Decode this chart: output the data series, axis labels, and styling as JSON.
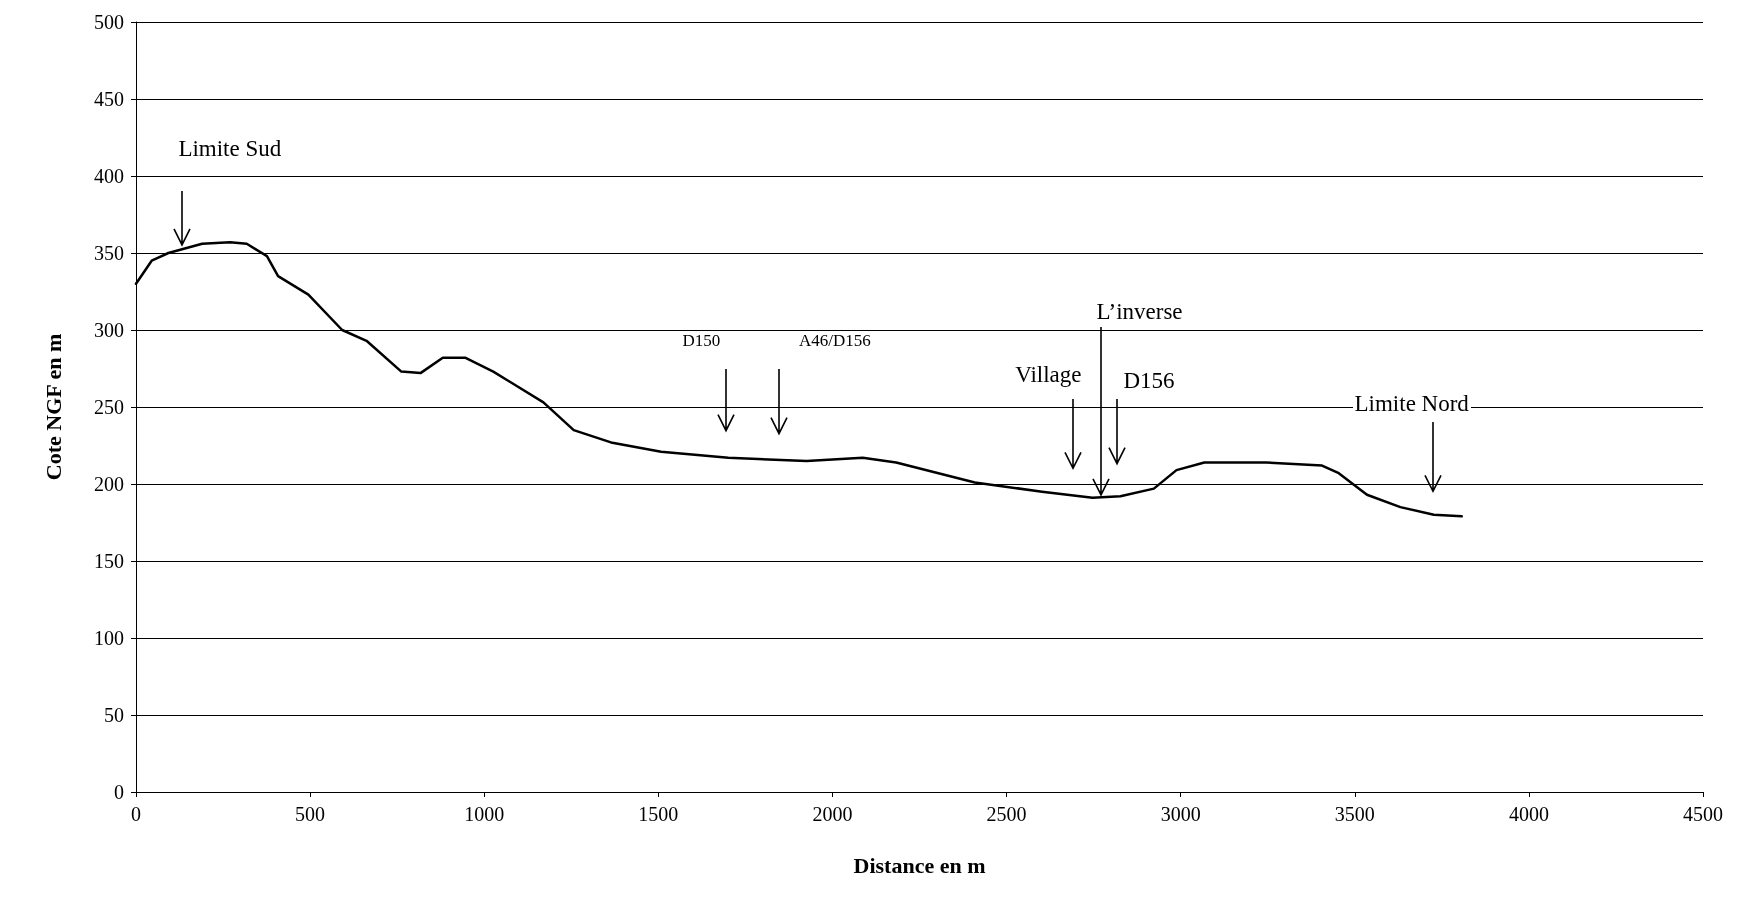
{
  "chart_data": {
    "type": "line",
    "xlabel": "Distance en m",
    "ylabel": "Cote NGF en m",
    "xlim": [
      0,
      4500
    ],
    "xticks": [
      0,
      500,
      1000,
      1500,
      2000,
      2500,
      3000,
      3500,
      4000,
      4500
    ],
    "ylim": [
      0,
      500
    ],
    "yticks": [
      0,
      50,
      100,
      150,
      200,
      250,
      300,
      350,
      400,
      450,
      500
    ],
    "grid": "y",
    "marker": "none",
    "line_style": "solid",
    "series": [
      {
        "color": "#000000",
        "x": [
          0,
          45,
          93,
          190,
          270,
          318,
          376,
          408,
          495,
          592,
          662,
          762,
          817,
          881,
          945,
          1026,
          1170,
          1257,
          1364,
          1508,
          1701,
          1926,
          2087,
          2183,
          2409,
          2602,
          2747,
          2827,
          2923,
          2988,
          3068,
          3245,
          3406,
          3454,
          3535,
          3631,
          3727,
          3807
        ],
        "values": [
          330,
          345,
          350,
          356,
          357,
          356,
          348,
          335,
          323,
          300,
          293,
          273,
          272,
          282,
          282,
          273,
          253,
          235,
          227,
          221,
          217,
          215,
          217,
          214,
          201,
          195,
          191,
          192,
          197,
          209,
          214,
          214,
          212,
          207,
          193,
          185,
          180,
          179
        ]
      }
    ],
    "annotations": [
      "Limite Sud",
      "D150",
      "A46/D156",
      "Village",
      {
        "text": "L’inverse",
        "x": 2770,
        "y": 193
      },
      "D156",
      "Limite Nord"
    ]
  }
}
